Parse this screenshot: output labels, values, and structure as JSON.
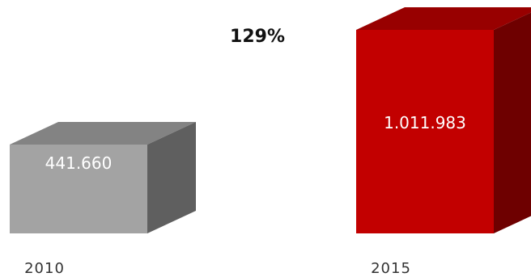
{
  "chart_data": {
    "type": "bar",
    "style": "3d",
    "categories": [
      "2010",
      "2015"
    ],
    "values": [
      441660,
      1011983
    ],
    "value_labels": [
      "441.660",
      "1.011.983"
    ],
    "annotation": "129%",
    "colors": [
      {
        "front": "#a3a3a3",
        "top": "#838383",
        "side": "#5f5f5f"
      },
      {
        "front": "#c20000",
        "top": "#980000",
        "side": "#6e0000"
      }
    ],
    "ylim": [
      0,
      1011983
    ],
    "grid": false,
    "legend": "none"
  }
}
